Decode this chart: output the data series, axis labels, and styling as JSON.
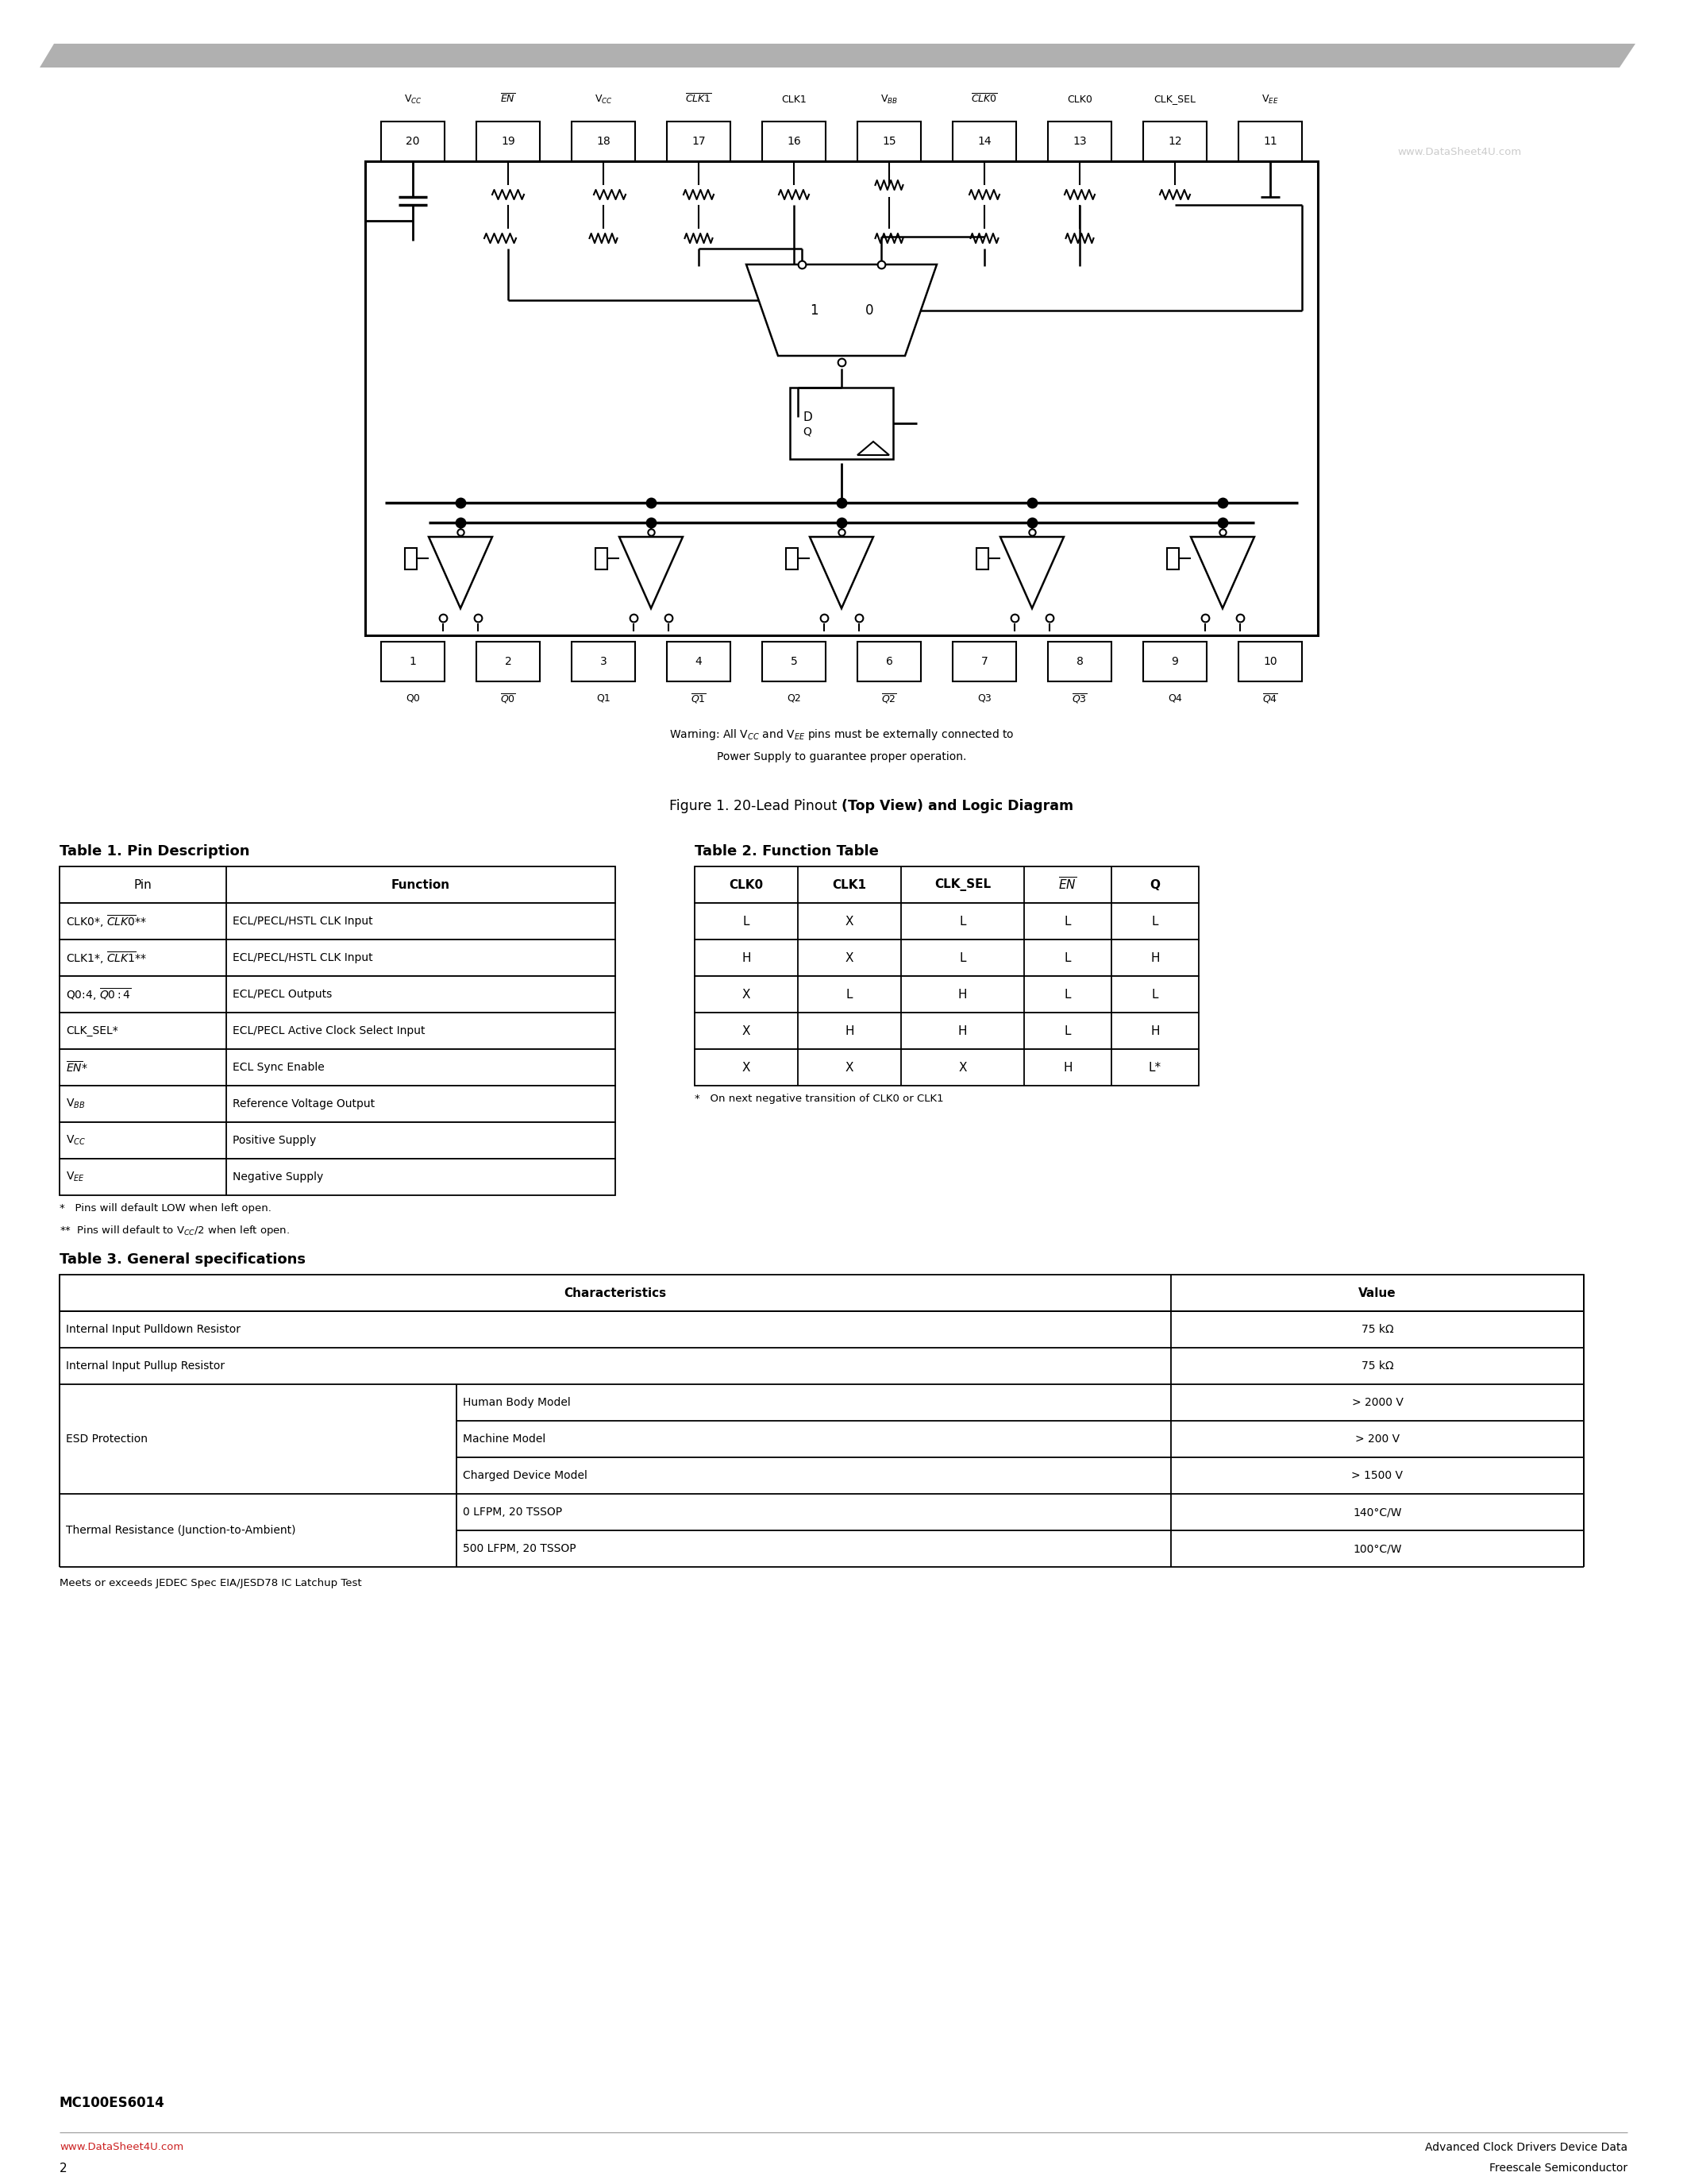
{
  "page_bg": "#ffffff",
  "header_bar_color": "#aaaaaa",
  "title": "MC100ES6014",
  "subtitle1": "Advanced Clock Drivers Device Data",
  "subtitle2": "Freescale Semiconductor",
  "page_number": "2",
  "website": "www.DataSheet4U.com",
  "figure_caption_normal": "Figure 1. 20-Lead Pinout ",
  "figure_caption_bold": "(Top View) and Logic Diagram",
  "figure_warning_line1": "Warning: All V$_{CC}$ and V$_{EE}$ pins must be externally connected to",
  "figure_warning_line2": "Power Supply to guarantee proper operation.",
  "table1_title": "Table 1. Pin Description",
  "table2_title": "Table 2. Function Table",
  "table3_title": "Table 3. General specifications",
  "table3_note": "Meets or exceeds JEDEC Spec EIA/JESD78 IC Latchup Test",
  "table1_note1": "*   Pins will default LOW when left open.",
  "table1_note2": "**  Pins will default to V$_{CC}$/2 when left open.",
  "table2_note": "*   On next negative transition of CLK0 or CLK1",
  "pin_top_numbers": [
    "20",
    "19",
    "18",
    "17",
    "16",
    "15",
    "14",
    "13",
    "12",
    "11"
  ],
  "pin_bot_numbers": [
    "1",
    "2",
    "3",
    "4",
    "5",
    "6",
    "7",
    "8",
    "9",
    "10"
  ],
  "table2_rows": [
    [
      "L",
      "X",
      "L",
      "L",
      "L"
    ],
    [
      "H",
      "X",
      "L",
      "L",
      "H"
    ],
    [
      "X",
      "L",
      "H",
      "L",
      "L"
    ],
    [
      "X",
      "H",
      "H",
      "L",
      "H"
    ],
    [
      "X",
      "X",
      "X",
      "H",
      "L*"
    ]
  ]
}
